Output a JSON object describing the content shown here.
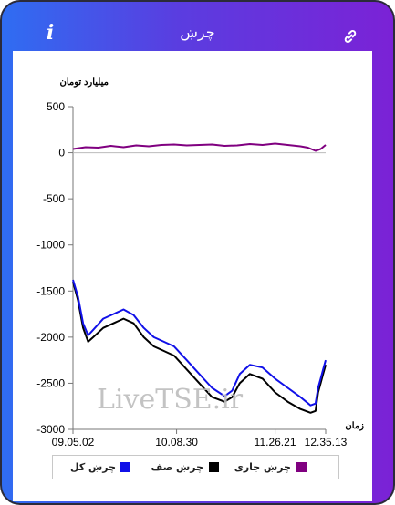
{
  "header": {
    "title": "چرښ",
    "info_icon": "info-icon",
    "link_icon": "link-icon"
  },
  "colors": {
    "total": "#1010e8",
    "queue": "#000000",
    "current": "#800080"
  },
  "watermark": "LiveTSE.ir",
  "chart_data": {
    "type": "line",
    "ylabel": "میلیارد تومان",
    "xlabel": "زمان",
    "ylim": [
      -3000,
      500
    ],
    "yticks": [
      500,
      0,
      -500,
      -1000,
      -1500,
      -2000,
      -2500,
      -3000
    ],
    "ytick_labels": [
      "500",
      "0",
      "-500",
      "-1000",
      "-1500",
      "-2000",
      "-2500",
      "-3000"
    ],
    "xlim": [
      0,
      100
    ],
    "xticks": [
      0,
      41,
      80,
      100
    ],
    "xtick_labels": [
      "09.05.02",
      "10.08.30",
      "11.26.21",
      "12.35.13"
    ],
    "grid": false,
    "legend_position": "bottom",
    "series": [
      {
        "name": "چرښ جاری",
        "key": "current",
        "x": [
          0,
          5,
          10,
          15,
          20,
          25,
          30,
          35,
          40,
          45,
          50,
          55,
          60,
          65,
          70,
          75,
          80,
          85,
          90,
          93,
          96,
          98,
          100
        ],
        "y": [
          40,
          60,
          55,
          75,
          60,
          80,
          70,
          85,
          90,
          80,
          85,
          90,
          75,
          80,
          95,
          85,
          100,
          85,
          70,
          55,
          20,
          40,
          85
        ]
      },
      {
        "name": "چرښ صف",
        "key": "queue",
        "x": [
          0,
          2,
          4,
          6,
          8,
          12,
          16,
          20,
          24,
          28,
          32,
          36,
          40,
          45,
          50,
          55,
          60,
          63,
          66,
          70,
          75,
          80,
          85,
          90,
          94,
          96,
          97,
          98,
          99,
          100
        ],
        "y": [
          -1400,
          -1600,
          -1900,
          -2050,
          -2000,
          -1900,
          -1850,
          -1800,
          -1850,
          -2000,
          -2100,
          -2150,
          -2200,
          -2350,
          -2500,
          -2650,
          -2700,
          -2650,
          -2500,
          -2400,
          -2450,
          -2600,
          -2700,
          -2780,
          -2820,
          -2800,
          -2600,
          -2500,
          -2400,
          -2300
        ]
      },
      {
        "name": "چرښ کل",
        "key": "total",
        "x": [
          0,
          2,
          4,
          6,
          8,
          12,
          16,
          20,
          24,
          28,
          32,
          36,
          40,
          45,
          50,
          55,
          60,
          63,
          66,
          70,
          75,
          80,
          85,
          90,
          94,
          96,
          97,
          98,
          99,
          100
        ],
        "y": [
          -1380,
          -1560,
          -1850,
          -1980,
          -1920,
          -1800,
          -1750,
          -1700,
          -1760,
          -1900,
          -2000,
          -2050,
          -2100,
          -2250,
          -2400,
          -2550,
          -2640,
          -2580,
          -2400,
          -2300,
          -2330,
          -2450,
          -2550,
          -2650,
          -2740,
          -2720,
          -2550,
          -2450,
          -2350,
          -2250
        ]
      }
    ]
  }
}
